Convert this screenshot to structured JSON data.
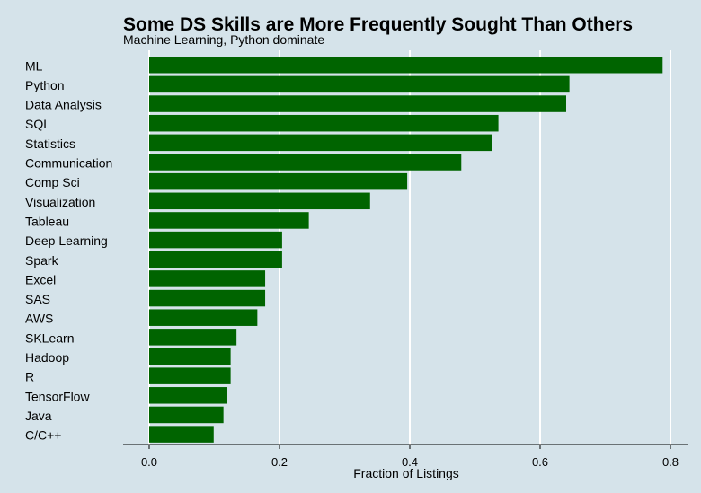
{
  "chart_data": {
    "type": "bar",
    "orientation": "horizontal",
    "title": "Some DS Skills are More Frequently Sought Than Others",
    "subtitle": "Machine Learning, Python dominate",
    "xlabel": "Fraction of Listings",
    "ylabel": "",
    "xlim": [
      0,
      0.8
    ],
    "xticks": [
      0.0,
      0.2,
      0.4,
      0.6,
      0.8
    ],
    "xtick_labels": [
      "0.0",
      "0.2",
      "0.4",
      "0.6",
      "0.8"
    ],
    "grid": "vertical",
    "bar_color": "#006400",
    "background_color": "#d5e3ea",
    "grid_color": "#ffffff",
    "categories": [
      "ML",
      "Python",
      "Data Analysis",
      "SQL",
      "Statistics",
      "Communication",
      "Comp Sci",
      "Visualization",
      "Tableau",
      "Deep Learning",
      "Spark",
      "Excel",
      "SAS",
      "AWS",
      "SKLearn",
      "Hadoop",
      "R",
      "TensorFlow",
      "Java",
      "C/C++"
    ],
    "values": [
      0.788,
      0.645,
      0.64,
      0.536,
      0.526,
      0.479,
      0.396,
      0.339,
      0.245,
      0.204,
      0.204,
      0.178,
      0.178,
      0.166,
      0.134,
      0.125,
      0.125,
      0.12,
      0.114,
      0.099
    ]
  }
}
